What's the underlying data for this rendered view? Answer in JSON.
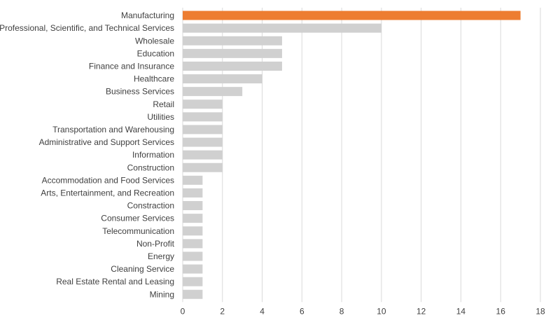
{
  "chart_data": {
    "type": "bar",
    "orientation": "horizontal",
    "title": "",
    "xlabel": "",
    "ylabel": "",
    "xlim": [
      0,
      18
    ],
    "x_ticks": [
      "0",
      "2",
      "4",
      "6",
      "8",
      "10",
      "12",
      "14",
      "16",
      "18"
    ],
    "grid": "vertical",
    "legend": "none",
    "colors": {
      "highlight": "#ED7D31",
      "default": "#D0D0D0"
    },
    "highlighted_category": "Manufacturing",
    "categories": [
      "Manufacturing",
      "Professional, Scientific, and Technical Services",
      "Wholesale",
      "Education",
      "Finance and Insurance",
      "Healthcare",
      "Business Services",
      "Retail",
      "Utilities",
      "Transportation and Warehousing",
      "Administrative and Support Services",
      "Information",
      "Construction",
      "Accommodation and Food Services",
      "Arts, Entertainment, and Recreation",
      "Constraction",
      "Consumer Services",
      "Telecommunication",
      "Non-Profit",
      "Energy",
      "Cleaning Service",
      "Real Estate Rental and Leasing",
      "Mining"
    ],
    "values": [
      17,
      10,
      5,
      5,
      5,
      4,
      3,
      2,
      2,
      2,
      2,
      2,
      2,
      1,
      1,
      1,
      1,
      1,
      1,
      1,
      1,
      1,
      1
    ]
  }
}
